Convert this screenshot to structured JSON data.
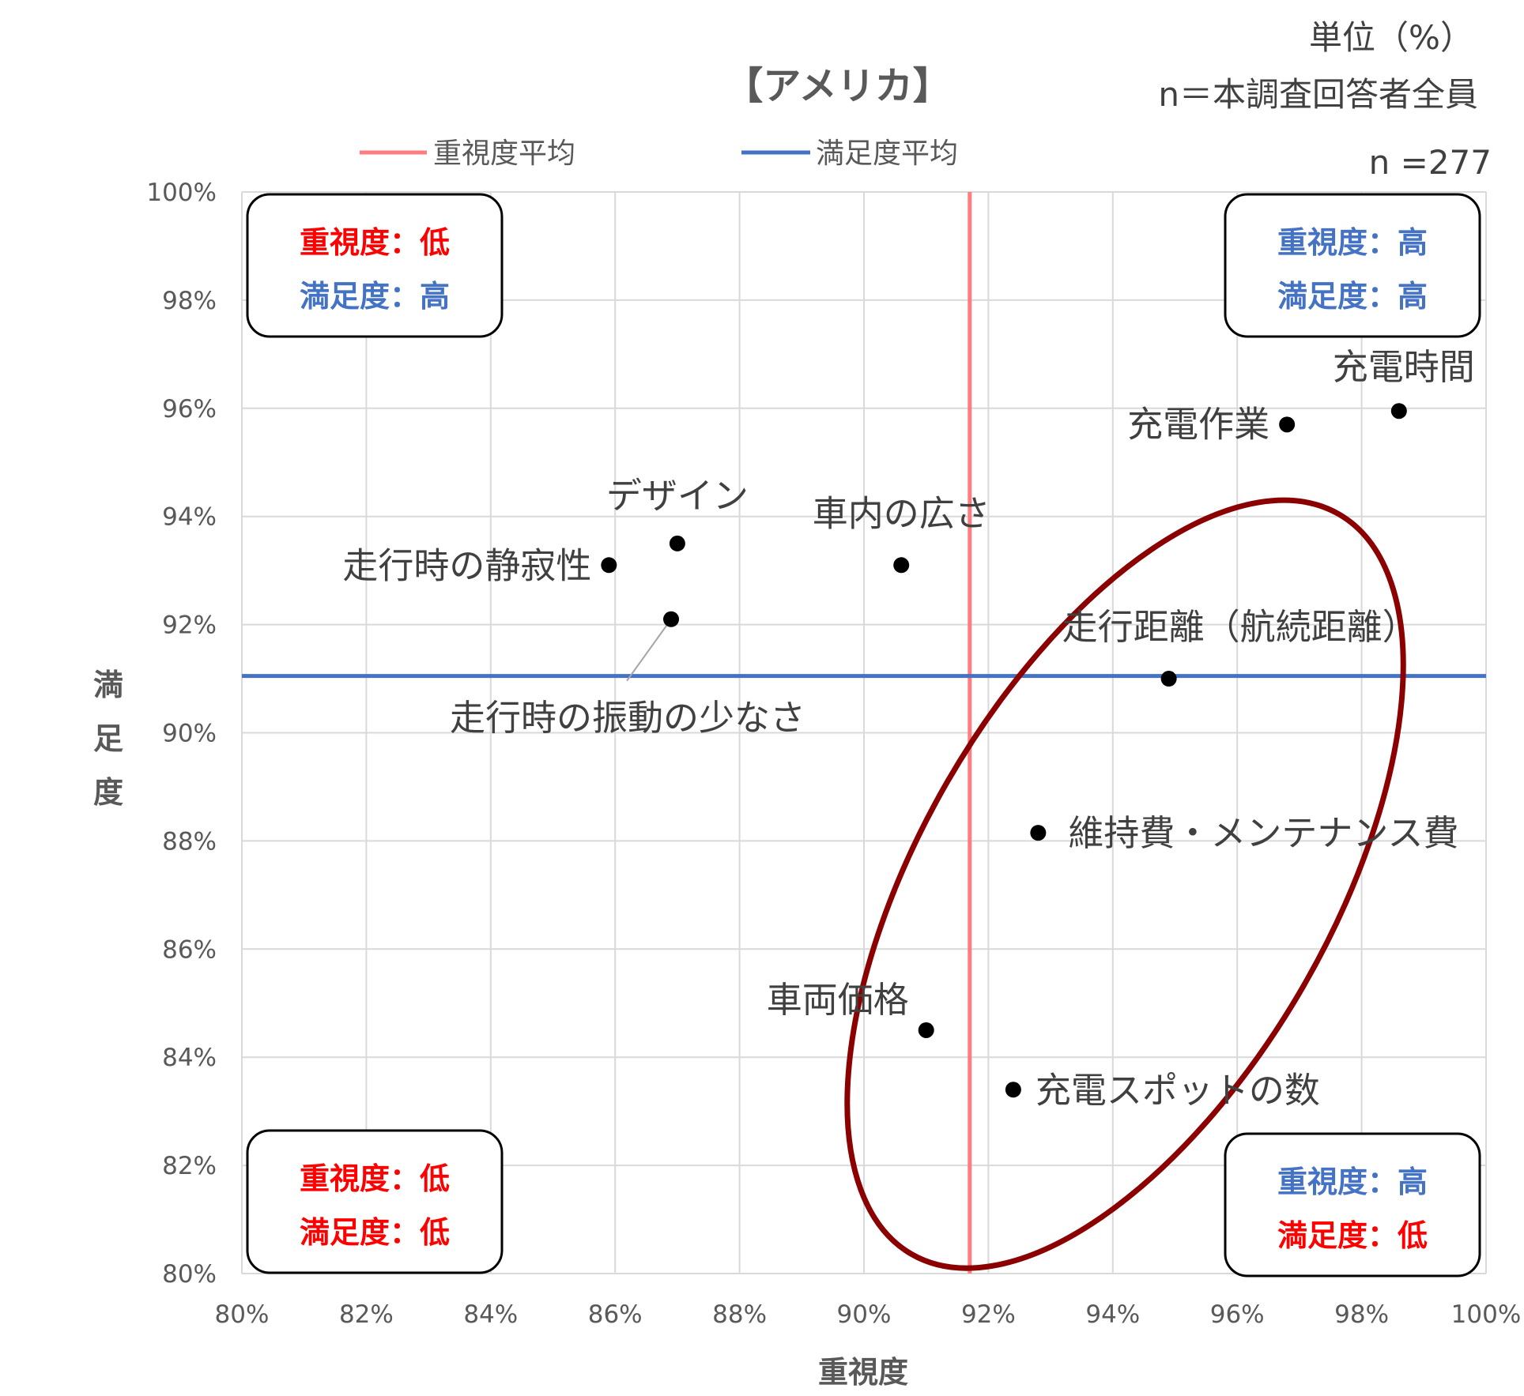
{
  "chart_data": {
    "type": "scatter",
    "title": "【アメリカ】",
    "unit_note": "単位（%）",
    "respondents_note": "n＝本調査回答者全員",
    "sample_size": "n =277",
    "xlabel": "重視度",
    "ylabel": "満足度",
    "xlim": [
      80,
      100
    ],
    "ylim": [
      80,
      100
    ],
    "x_ticks": [
      "80%",
      "82%",
      "84%",
      "86%",
      "88%",
      "90%",
      "92%",
      "94%",
      "96%",
      "98%",
      "100%"
    ],
    "y_ticks": [
      "100%",
      "98%",
      "96%",
      "94%",
      "92%",
      "90%",
      "88%",
      "86%",
      "84%",
      "82%",
      "80%"
    ],
    "grid": true,
    "legend": [
      {
        "name": "重視度平均",
        "color": "#ff7c80"
      },
      {
        "name": "満足度平均",
        "color": "#4472c4"
      }
    ],
    "legend_position": "top",
    "importance_average": 91.7,
    "satisfaction_average": 91.05,
    "points": [
      {
        "label": "充電時間",
        "x": 98.6,
        "y": 95.95
      },
      {
        "label": "充電作業",
        "x": 96.8,
        "y": 95.7
      },
      {
        "label": "デザイン",
        "x": 87.0,
        "y": 93.5
      },
      {
        "label": "走行時の静寂性",
        "x": 85.9,
        "y": 93.1
      },
      {
        "label": "車内の広さ",
        "x": 90.6,
        "y": 93.1
      },
      {
        "label": "走行時の振動の少なさ",
        "x": 86.9,
        "y": 92.1
      },
      {
        "label": "走行距離（航続距離）",
        "x": 94.9,
        "y": 91.0
      },
      {
        "label": "維持費・メンテナンス費",
        "x": 92.8,
        "y": 88.15
      },
      {
        "label": "車両価格",
        "x": 91.0,
        "y": 84.5
      },
      {
        "label": "充電スポットの数",
        "x": 92.4,
        "y": 83.4
      }
    ],
    "quadrants": [
      {
        "position": "top-left",
        "line1": "重視度：低",
        "color1": "#ff0000",
        "line2": "満足度：高",
        "color2": "#4472c4"
      },
      {
        "position": "top-right",
        "line1": "重視度：高",
        "color1": "#4472c4",
        "line2": "満足度：高",
        "color2": "#4472c4"
      },
      {
        "position": "bottom-left",
        "line1": "重視度：低",
        "color1": "#ff0000",
        "line2": "満足度：低",
        "color2": "#ff0000"
      },
      {
        "position": "bottom-right",
        "line1": "重視度：高",
        "color1": "#4472c4",
        "line2": "満足度：低",
        "color2": "#ff0000"
      }
    ],
    "highlight_ellipse": {
      "color": "#8b0000",
      "cx": 94.2,
      "cy": 87.2,
      "rx": 3.3,
      "ry": 7.9,
      "rotate_deg": 30
    }
  }
}
